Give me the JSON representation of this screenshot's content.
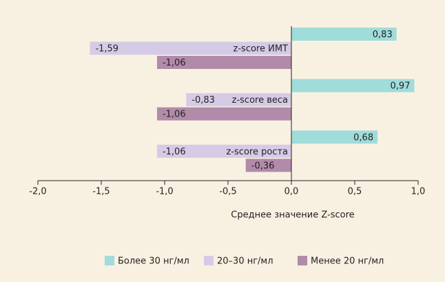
{
  "chart_data": {
    "type": "hbar",
    "categories": [
      "z-score ИМТ",
      "z-score веса",
      "z-score роста"
    ],
    "series": [
      {
        "name": "Более 30 нг/мл",
        "color": "#9fdcda",
        "values": [
          0.83,
          0.97,
          0.68
        ],
        "value_labels": [
          "0,83",
          "0,97",
          "0,68"
        ]
      },
      {
        "name": "20–30 нг/мл",
        "color": "#d6cbe6",
        "values": [
          -1.59,
          -0.83,
          -1.06
        ],
        "value_labels": [
          "-1,59",
          "-0,83",
          "-1,06"
        ]
      },
      {
        "name": "Менее 20 нг/мл",
        "color": "#b18ba9",
        "values": [
          -1.06,
          -1.06,
          -0.36
        ],
        "value_labels": [
          "-1,06",
          "-1,06",
          "-0,36"
        ]
      }
    ],
    "xlabel": "Среднее значение Z-score",
    "xlim": [
      -2,
      1
    ],
    "xticks": [
      {
        "value": -2,
        "label": "-2,0"
      },
      {
        "value": -1.5,
        "label": "-1,5"
      },
      {
        "value": -1,
        "label": "-1,0"
      },
      {
        "value": -0.5,
        "label": "-0,5"
      },
      {
        "value": 0,
        "label": "0,0"
      },
      {
        "value": 0.5,
        "label": "0,5"
      },
      {
        "value": 1,
        "label": "1,0"
      }
    ],
    "legend": "bottom"
  }
}
